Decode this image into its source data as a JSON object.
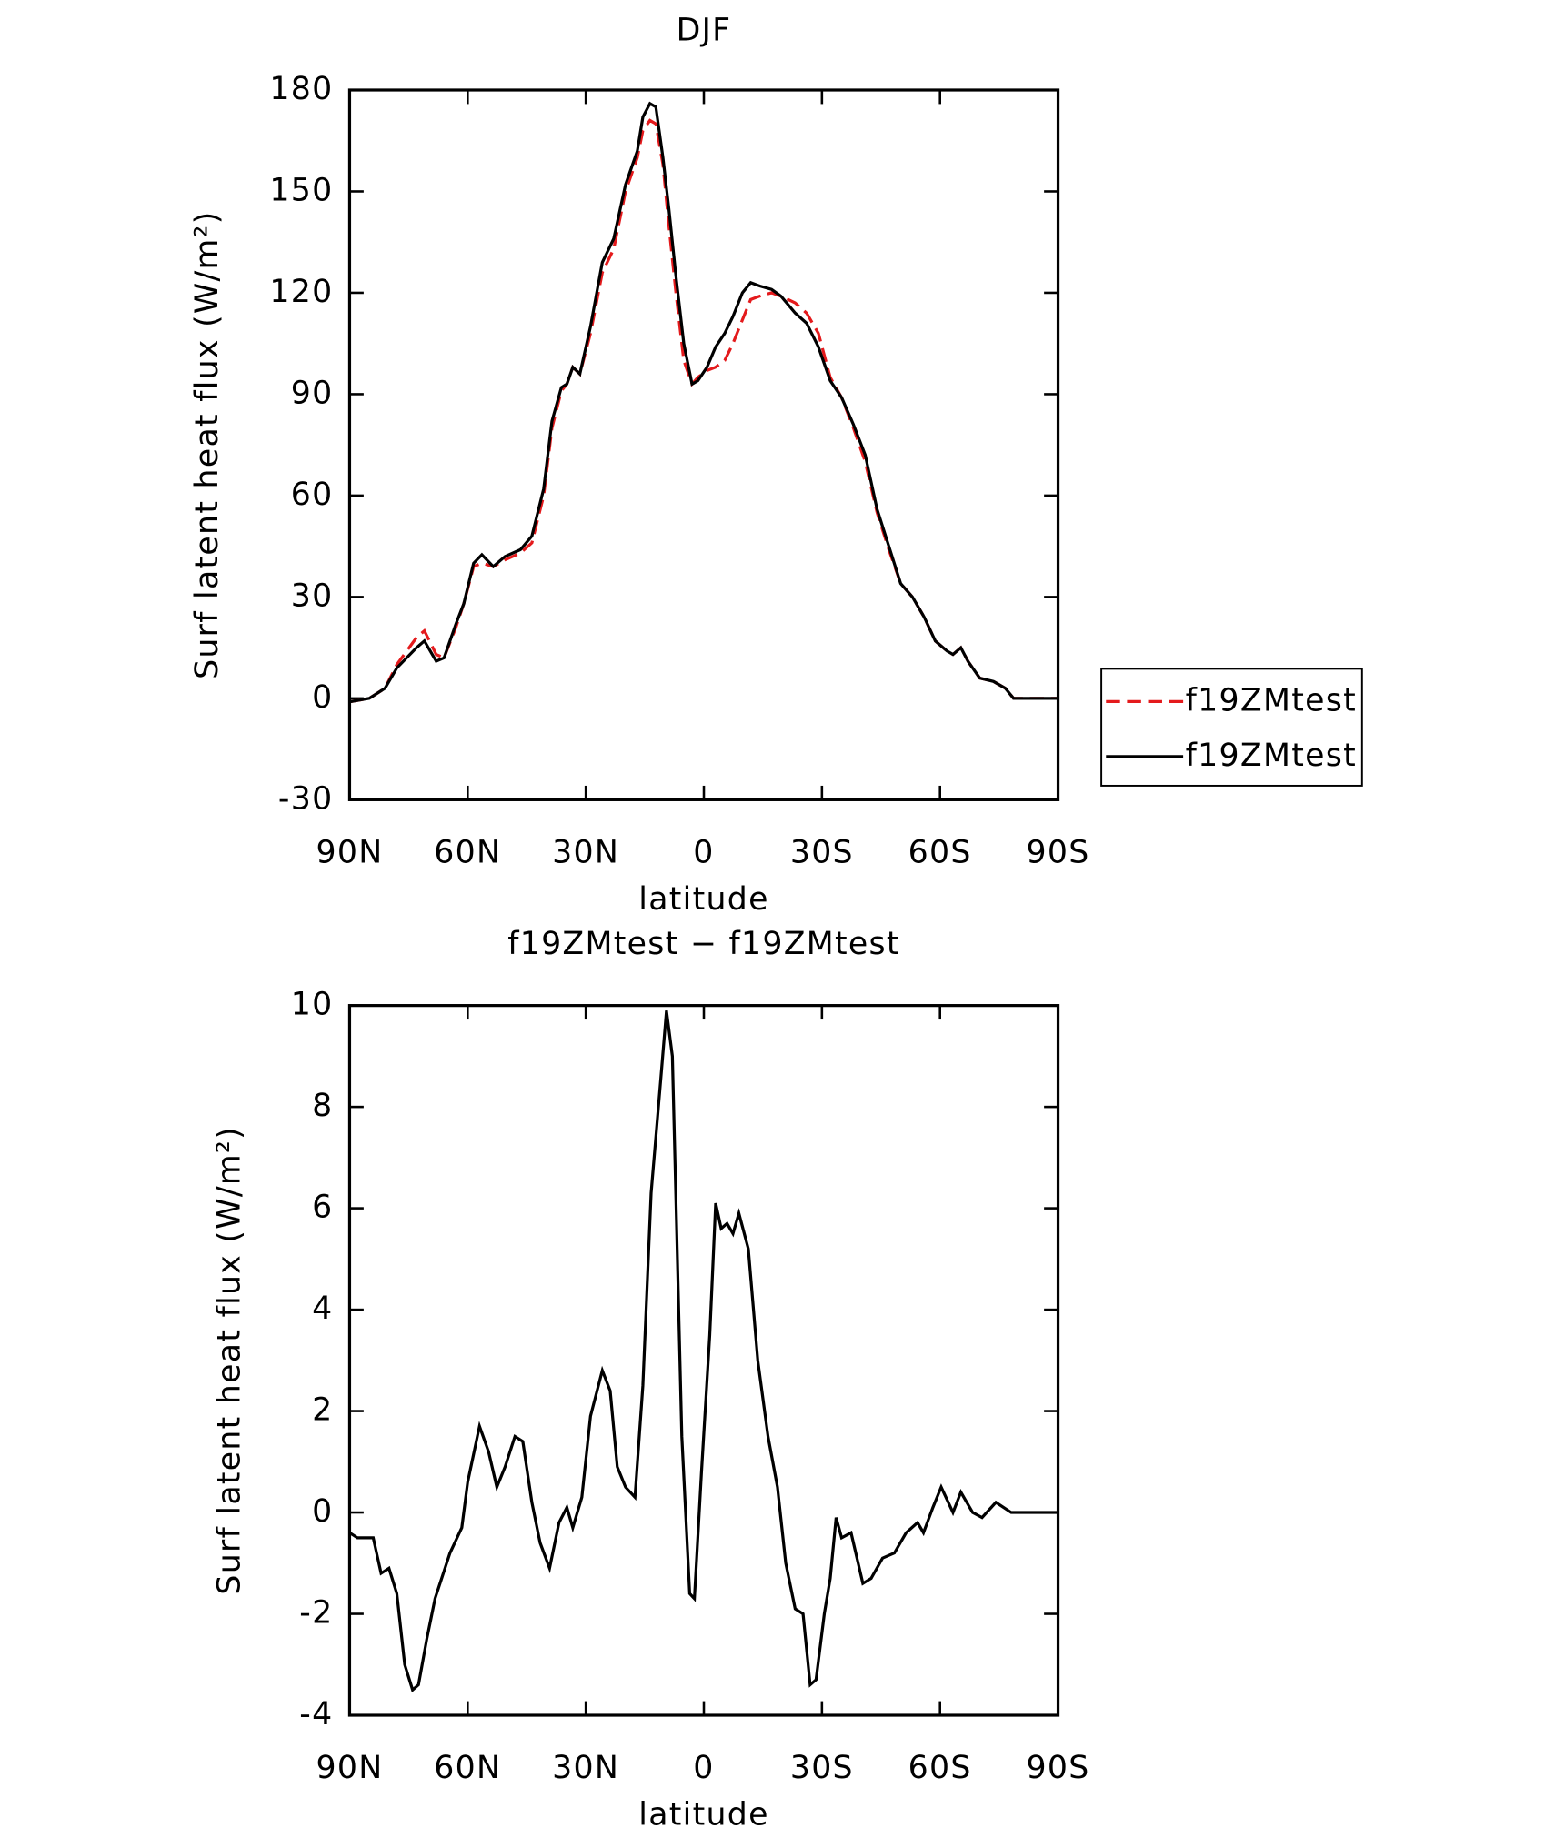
{
  "chart_data": [
    {
      "type": "line",
      "title": "DJF",
      "x_label": "latitude",
      "y_label": "Surf latent heat flux (W/m²)",
      "x": [
        90,
        85,
        81,
        78,
        73,
        71,
        68,
        66,
        63,
        61,
        58.5,
        56.4,
        53.5,
        50.5,
        46.6,
        43.7,
        40.7,
        38.6,
        36.2,
        34.8,
        33.3,
        31.5,
        28.8,
        25.8,
        22.9,
        19.9,
        16.9,
        15.5,
        13.7,
        12.2,
        10.4,
        8.9,
        7.1,
        5.1,
        3,
        1.5,
        -0.8,
        -3,
        -5.3,
        -7.4,
        -9.8,
        -11.9,
        -14.2,
        -17.2,
        -19.6,
        -23.2,
        -26.1,
        -29.1,
        -32.1,
        -35,
        -38,
        -41,
        -44,
        -47,
        -50,
        -53,
        -56,
        -58.8,
        -61.8,
        -63.3,
        -65.3,
        -67.1,
        -70.1,
        -73.6,
        -76.6,
        -78.7,
        -82.6,
        -90
      ],
      "series": [
        {
          "name": "f19ZMtest",
          "color": "#e41a1c",
          "line_style": "dashed",
          "values": [
            -1,
            0,
            3,
            10,
            18,
            20,
            13,
            12,
            21,
            28,
            39,
            40,
            39,
            41,
            43,
            46,
            60,
            80,
            91,
            93,
            98,
            96,
            108,
            126,
            133,
            150,
            160,
            168,
            171,
            170,
            158,
            140,
            120,
            100,
            93,
            95,
            97,
            98,
            100,
            105,
            112,
            118,
            119,
            120,
            119,
            117,
            114,
            108,
            95,
            89,
            80,
            70,
            55,
            44,
            34,
            30,
            24,
            17,
            14,
            13,
            15,
            11,
            6,
            5,
            3,
            0,
            0,
            0
          ]
        },
        {
          "name": "f19ZMtest",
          "color": "#000000",
          "line_style": "solid",
          "values": [
            -1,
            0,
            3,
            9,
            15,
            17,
            11,
            12,
            22,
            28,
            40,
            42.5,
            39,
            42,
            44,
            48,
            62,
            82,
            92,
            93,
            98,
            96,
            110,
            129,
            136,
            152,
            162,
            172,
            176,
            175,
            160,
            145,
            125,
            105,
            93,
            94,
            98,
            104,
            108,
            113,
            120,
            123,
            122,
            121,
            119,
            114,
            111,
            104,
            94,
            89,
            81,
            72,
            56,
            45,
            34,
            30,
            24,
            17,
            14,
            13,
            15,
            11,
            6,
            5,
            3,
            0,
            0,
            0
          ]
        }
      ],
      "xlim": [
        90,
        -90
      ],
      "xticks": [
        {
          "value": 90,
          "label": "90N"
        },
        {
          "value": 60,
          "label": "60N"
        },
        {
          "value": 30,
          "label": "30N"
        },
        0,
        {
          "value": -30,
          "label": "30S"
        },
        {
          "value": -60,
          "label": "60S"
        },
        {
          "value": -90,
          "label": "90S"
        }
      ],
      "ylim": [
        -30,
        180
      ],
      "yticks": [
        -30,
        0,
        30,
        60,
        90,
        120,
        150,
        180
      ],
      "legend": "right"
    },
    {
      "type": "line",
      "title": "f19ZMtest − f19ZMtest",
      "x_label": "latitude",
      "y_label": "Surf latent heat flux (W/m²)",
      "x": [
        90,
        88,
        84,
        82,
        80,
        78,
        76,
        74,
        72.5,
        70.4,
        68.3,
        64.5,
        61.5,
        60,
        57,
        54.7,
        52.6,
        50.5,
        48,
        46,
        43.7,
        41.6,
        39.2,
        36.8,
        34.8,
        33.3,
        31,
        28.8,
        25.8,
        23.8,
        22,
        19.9,
        17.5,
        15.5,
        13.4,
        11,
        9.5,
        8,
        5.6,
        3.6,
        2.4,
        0.6,
        -1.5,
        -3,
        -4.4,
        -5.9,
        -7.4,
        -8.9,
        -11.3,
        -13.7,
        -16.3,
        -18.7,
        -20.8,
        -23.2,
        -25.2,
        -27,
        -28.5,
        -30.6,
        -32.1,
        -33.6,
        -35,
        -37.4,
        -40.4,
        -42.5,
        -45.4,
        -48.4,
        -51.4,
        -54.3,
        -55.8,
        -58.2,
        -60.3,
        -63.3,
        -65.3,
        -68.3,
        -70.7,
        -74.2,
        -78.1,
        -90
      ],
      "series": [
        {
          "color": "#000000",
          "line_style": "solid",
          "values": [
            -0.4,
            -0.5,
            -0.5,
            -1.2,
            -1.1,
            -1.6,
            -3.0,
            -3.5,
            -3.4,
            -2.5,
            -1.7,
            -0.8,
            -0.3,
            0.6,
            1.7,
            1.2,
            0.5,
            0.9,
            1.5,
            1.4,
            0.2,
            -0.6,
            -1.1,
            -0.2,
            0.1,
            -0.3,
            0.3,
            1.9,
            2.8,
            2.4,
            0.9,
            0.5,
            0.3,
            2.5,
            6.3,
            8.5,
            9.9,
            9.0,
            1.5,
            -1.6,
            -1.7,
            0.8,
            3.5,
            6.1,
            5.6,
            5.7,
            5.5,
            5.9,
            5.2,
            3.0,
            1.5,
            0.5,
            -1.0,
            -1.9,
            -2.0,
            -3.4,
            -3.3,
            -2.0,
            -1.3,
            -0.1,
            -0.5,
            -0.4,
            -1.4,
            -1.3,
            -0.9,
            -0.8,
            -0.4,
            -0.2,
            -0.4,
            0.1,
            0.5,
            0.0,
            0.4,
            0.0,
            -0.1,
            0.2,
            0.0,
            0.0
          ]
        }
      ],
      "xlim": [
        90,
        -90
      ],
      "xticks": [
        {
          "value": 90,
          "label": "90N"
        },
        {
          "value": 60,
          "label": "60N"
        },
        {
          "value": 30,
          "label": "30N"
        },
        0,
        {
          "value": -30,
          "label": "30S"
        },
        {
          "value": -60,
          "label": "60S"
        },
        {
          "value": -90,
          "label": "90S"
        }
      ],
      "ylim": [
        -4,
        10
      ],
      "yticks": [
        -4,
        -2,
        0,
        2,
        4,
        6,
        8,
        10
      ]
    }
  ]
}
